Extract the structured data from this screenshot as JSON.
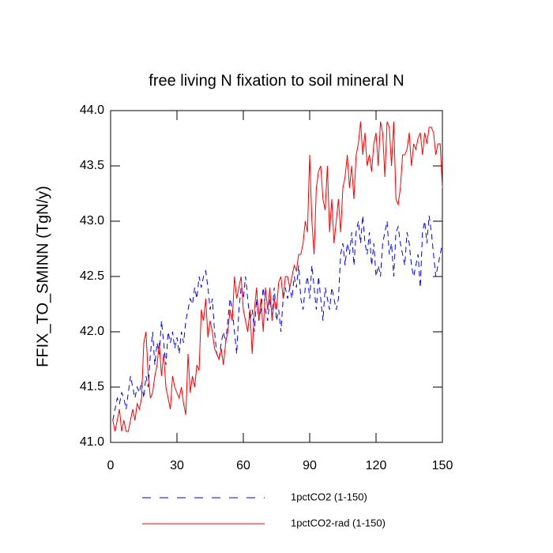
{
  "chart_data": {
    "type": "line",
    "title": "free living N fixation to soil mineral N",
    "y_label": "FFIX_TO_SMINN  (TgN/y)",
    "xlim": [
      0,
      150
    ],
    "xticks": [
      0,
      30,
      60,
      90,
      120,
      150
    ],
    "ylim": [
      41.0,
      44.0
    ],
    "yticks": [
      {
        "value": 41.0,
        "label": "41.0"
      },
      {
        "value": 41.5,
        "label": "41.5"
      },
      {
        "value": 42.0,
        "label": "42.0"
      },
      {
        "value": 42.5,
        "label": "42.5"
      },
      {
        "value": 43.0,
        "label": "43.0"
      },
      {
        "value": 43.5,
        "label": "43.5"
      },
      {
        "value": 44.0,
        "label": "44.0"
      }
    ],
    "x": [
      1,
      2,
      3,
      4,
      5,
      6,
      7,
      8,
      9,
      10,
      11,
      12,
      13,
      14,
      15,
      16,
      17,
      18,
      19,
      20,
      21,
      22,
      23,
      24,
      25,
      26,
      27,
      28,
      29,
      30,
      31,
      32,
      33,
      34,
      35,
      36,
      37,
      38,
      39,
      40,
      41,
      42,
      43,
      44,
      45,
      46,
      47,
      48,
      49,
      50,
      51,
      52,
      53,
      54,
      55,
      56,
      57,
      58,
      59,
      60,
      61,
      62,
      63,
      64,
      65,
      66,
      67,
      68,
      69,
      70,
      71,
      72,
      73,
      74,
      75,
      76,
      77,
      78,
      79,
      80,
      81,
      82,
      83,
      84,
      85,
      86,
      87,
      88,
      89,
      90,
      91,
      92,
      93,
      94,
      95,
      96,
      97,
      98,
      99,
      100,
      101,
      102,
      103,
      104,
      105,
      106,
      107,
      108,
      109,
      110,
      111,
      112,
      113,
      114,
      115,
      116,
      117,
      118,
      119,
      120,
      121,
      122,
      123,
      124,
      125,
      126,
      127,
      128,
      129,
      130,
      131,
      132,
      133,
      134,
      135,
      136,
      137,
      138,
      139,
      140,
      141,
      142,
      143,
      144,
      145,
      146,
      147,
      148,
      149,
      150
    ],
    "series": [
      {
        "name": "1pctCO2 (1-150)",
        "color": "#0000ff",
        "dash": true,
        "values": [
          41.2,
          41.3,
          41.4,
          41.35,
          41.45,
          41.4,
          41.3,
          41.45,
          41.6,
          41.5,
          41.4,
          41.5,
          41.45,
          41.55,
          41.4,
          41.6,
          41.5,
          41.8,
          42.0,
          41.7,
          41.9,
          41.8,
          42.1,
          41.9,
          41.7,
          42.0,
          41.9,
          42.0,
          41.85,
          41.95,
          41.8,
          42.0,
          41.9,
          42.1,
          42.2,
          42.3,
          42.25,
          42.4,
          42.3,
          42.5,
          42.4,
          42.5,
          42.55,
          42.4,
          42.2,
          42.3,
          42.0,
          41.8,
          41.75,
          41.9,
          42.0,
          41.9,
          42.1,
          42.3,
          42.2,
          42.0,
          41.8,
          42.2,
          42.4,
          42.3,
          42.5,
          42.3,
          42.1,
          42.2,
          42.0,
          42.3,
          42.1,
          42.2,
          42.4,
          42.2,
          42.1,
          42.3,
          42.15,
          42.4,
          42.1,
          42.2,
          42.0,
          42.3,
          42.4,
          42.3,
          42.4,
          42.3,
          42.5,
          42.4,
          42.6,
          42.3,
          42.2,
          42.4,
          42.5,
          42.3,
          42.6,
          42.4,
          42.2,
          42.5,
          42.3,
          42.1,
          42.4,
          42.3,
          42.2,
          42.4,
          42.3,
          42.2,
          42.3,
          42.7,
          42.8,
          42.6,
          42.8,
          42.7,
          42.9,
          42.6,
          42.9,
          43.0,
          42.8,
          43.05,
          42.8,
          42.7,
          42.9,
          42.6,
          42.8,
          42.5,
          42.6,
          42.5,
          42.8,
          42.9,
          43.0,
          42.7,
          42.8,
          42.5,
          42.9,
          42.95,
          42.8,
          42.7,
          42.6,
          42.9,
          42.8,
          42.6,
          42.5,
          42.6,
          42.7,
          42.4,
          42.9,
          43.0,
          42.8,
          43.05,
          42.9,
          42.7,
          42.5,
          42.6,
          42.7,
          42.8
        ]
      },
      {
        "name": "1pctCO2-rad (1-150)",
        "color": "#ff0000",
        "dash": false,
        "values": [
          41.2,
          41.1,
          41.2,
          41.3,
          41.1,
          41.2,
          41.1,
          41.1,
          41.2,
          41.3,
          41.2,
          41.35,
          41.3,
          41.4,
          41.9,
          42.0,
          41.6,
          41.4,
          41.45,
          41.6,
          41.7,
          41.9,
          41.6,
          41.8,
          41.5,
          41.4,
          41.3,
          41.6,
          41.5,
          41.45,
          41.4,
          41.5,
          41.35,
          41.25,
          41.8,
          41.45,
          41.6,
          41.5,
          41.7,
          41.65,
          42.2,
          42.1,
          42.3,
          41.95,
          42.1,
          42.0,
          41.85,
          41.8,
          41.75,
          41.85,
          41.7,
          41.9,
          42.0,
          42.2,
          42.1,
          42.5,
          42.3,
          42.4,
          42.5,
          42.2,
          42.1,
          42.0,
          42.2,
          41.8,
          42.2,
          42.4,
          42.1,
          42.3,
          42.0,
          42.4,
          42.2,
          42.4,
          42.1,
          42.3,
          42.2,
          42.45,
          42.5,
          42.3,
          42.5,
          42.5,
          42.4,
          42.5,
          42.6,
          42.55,
          42.7,
          42.7,
          42.8,
          43.0,
          42.9,
          43.6,
          43.0,
          42.7,
          43.3,
          43.45,
          43.5,
          43.2,
          43.1,
          43.5,
          42.9,
          43.2,
          42.8,
          43.0,
          43.2,
          42.9,
          43.3,
          43.4,
          43.6,
          43.3,
          43.5,
          43.2,
          43.6,
          43.7,
          43.9,
          43.6,
          43.8,
          43.5,
          43.6,
          43.45,
          43.7,
          43.8,
          43.5,
          43.9,
          43.8,
          43.4,
          43.9,
          43.85,
          43.5,
          43.9,
          43.2,
          43.15,
          43.3,
          43.6,
          43.6,
          43.65,
          43.8,
          43.5,
          43.7,
          43.65,
          43.75,
          43.8,
          43.6,
          43.8,
          43.7,
          43.85,
          43.85,
          43.8,
          43.6,
          43.7,
          43.7,
          43.3
        ]
      }
    ]
  }
}
